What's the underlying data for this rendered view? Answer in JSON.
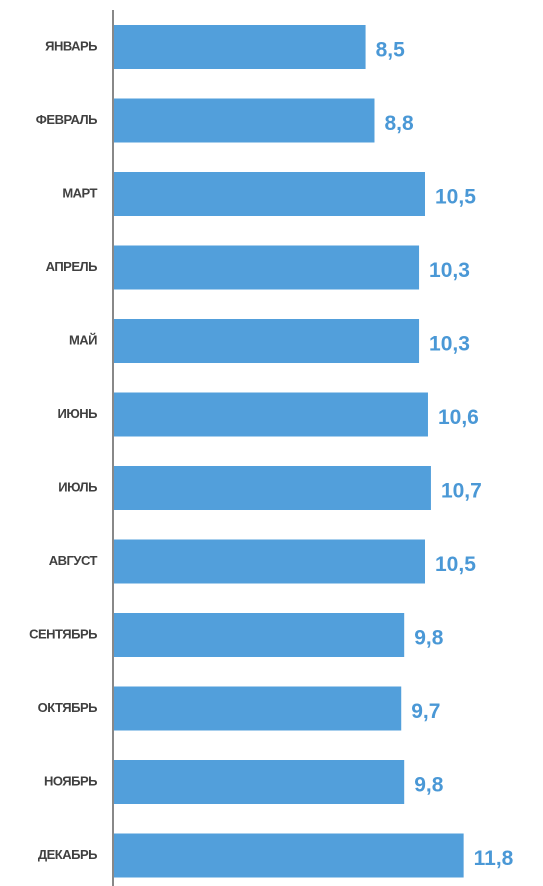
{
  "chart_data": {
    "type": "bar",
    "orientation": "horizontal",
    "categories": [
      "ЯНВАРЬ",
      "ФЕВРАЛЬ",
      "МАРТ",
      "АПРЕЛЬ",
      "МАЙ",
      "ИЮНЬ",
      "ИЮЛЬ",
      "АВГУСТ",
      "СЕНТЯБРЬ",
      "ОКТЯБРЬ",
      "НОЯБРЬ",
      "ДЕКАБРЬ"
    ],
    "values": [
      8.5,
      8.8,
      10.5,
      10.3,
      10.3,
      10.6,
      10.7,
      10.5,
      9.8,
      9.7,
      9.8,
      11.8
    ],
    "value_labels": [
      "8,5",
      "8,8",
      "10,5",
      "10,3",
      "10,3",
      "10,6",
      "10,7",
      "10,5",
      "9,8",
      "9,7",
      "9,8",
      "11,8"
    ],
    "color": "#529fdb",
    "label_color": "#4a98d6",
    "xlim": [
      0,
      14
    ]
  }
}
